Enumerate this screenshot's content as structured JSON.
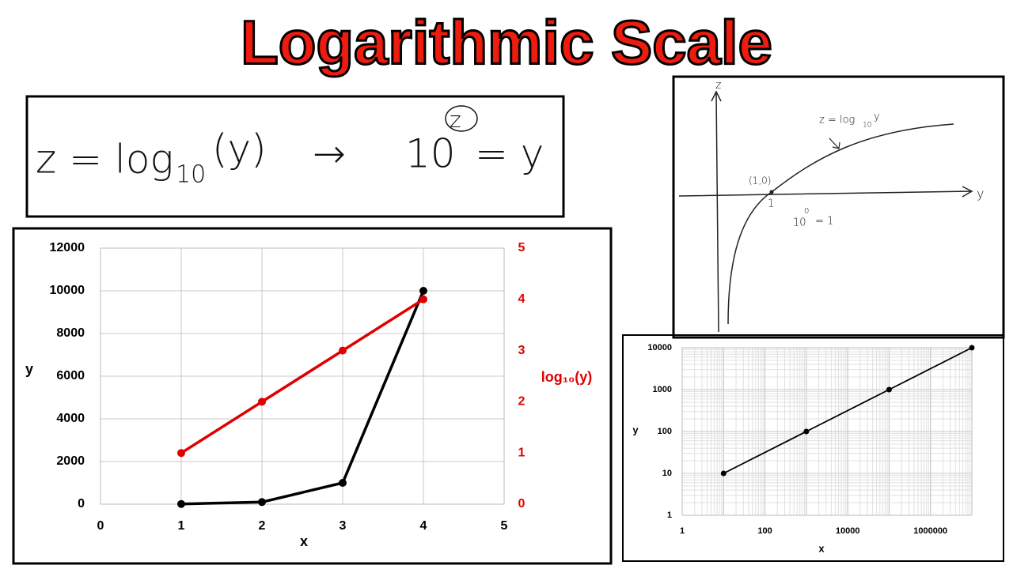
{
  "title": "Logarithmic Scale",
  "equation": {
    "lhs": "z = log",
    "lhs_sub": "10",
    "lhs_arg": "(y)",
    "arrow": "→",
    "rhs_base": "10",
    "rhs_exp": "z",
    "rhs_end": "= y"
  },
  "sketch": {
    "z_axis": "z",
    "y_axis": "y",
    "curve_label": "z = log",
    "curve_label_sub": "10",
    "curve_label_arg": "y",
    "point_label": "(1,0)",
    "point_x": "1",
    "note_base": "10",
    "note_exp": "0",
    "note_end": "= 1"
  },
  "chart_data": [
    {
      "type": "line",
      "x": [
        1,
        2,
        3,
        4
      ],
      "series": [
        {
          "color": "#000000",
          "values": [
            10,
            100,
            1000,
            10000
          ]
        },
        {
          "color": "#e00000",
          "values": [
            1,
            2,
            3,
            4
          ],
          "axis": "y2"
        }
      ],
      "xlim": [
        0,
        5
      ],
      "xticks": [
        0,
        1,
        2,
        3,
        4,
        5
      ],
      "ylim": [
        0,
        12000
      ],
      "yticks": [
        0,
        2000,
        4000,
        6000,
        8000,
        10000,
        12000
      ],
      "y2lim": [
        0,
        5
      ],
      "y2ticks": [
        0,
        1,
        2,
        3,
        4,
        5
      ],
      "xlabel": "x",
      "ylabel": "y",
      "y2label": "log₁₀(y)",
      "y2color": "#e00000",
      "grid": true
    },
    {
      "type": "line",
      "x": [
        10,
        1000,
        100000,
        10000000
      ],
      "series": [
        {
          "color": "#000000",
          "values": [
            10,
            100,
            1000,
            10000
          ]
        }
      ],
      "xlim": [
        1,
        10000000
      ],
      "xticks": [
        1,
        100,
        10000,
        1000000
      ],
      "ylim": [
        1,
        10000
      ],
      "yticks": [
        1,
        10,
        100,
        1000,
        10000
      ],
      "log_x": true,
      "log_y": true,
      "xlabel": "x",
      "ylabel": "y",
      "grid": true
    }
  ]
}
